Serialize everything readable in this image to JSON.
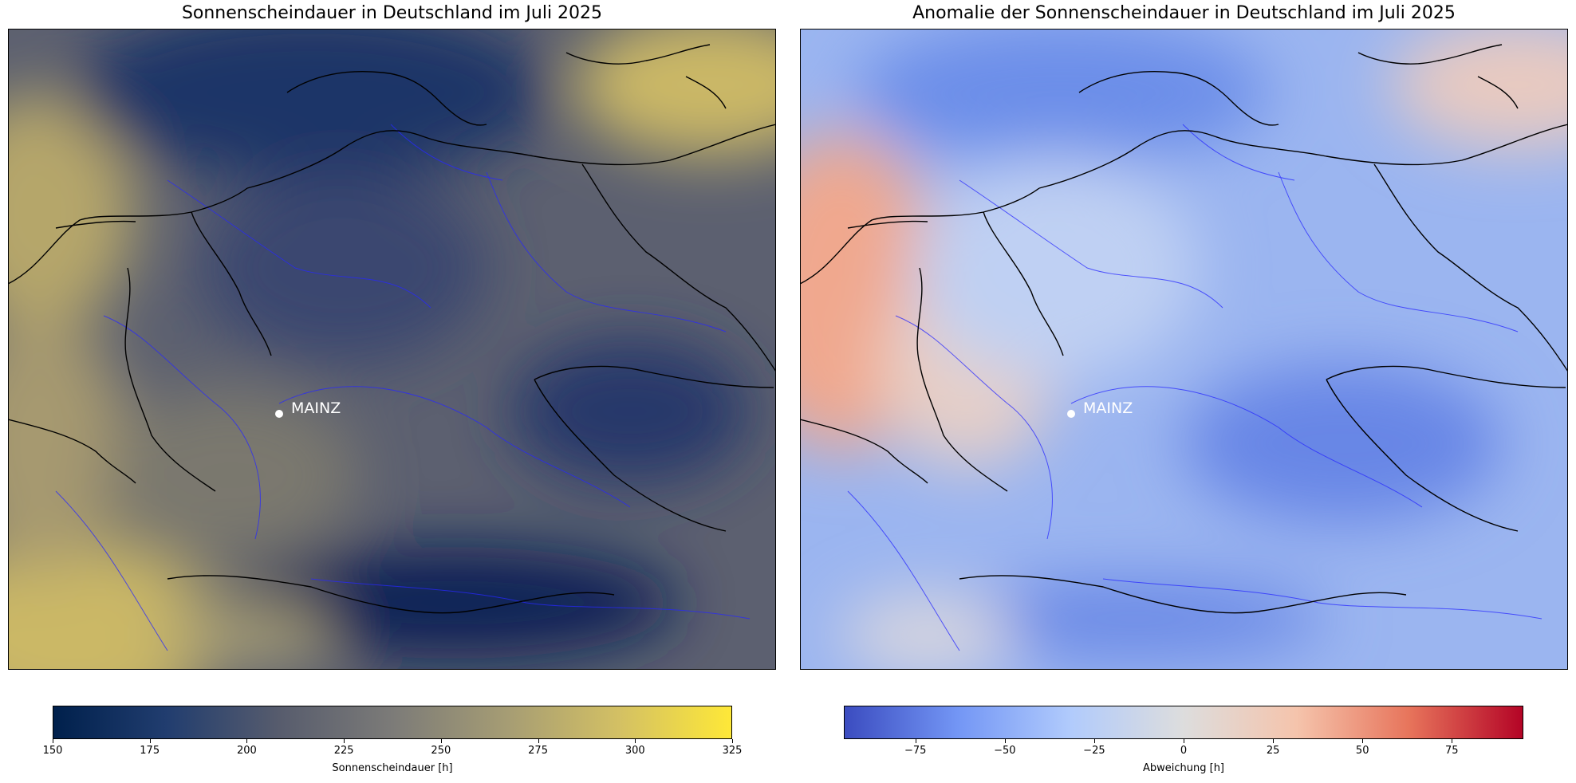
{
  "left_panel": {
    "title": "Sonnenscheindauer in Deutschland im Juli 2025",
    "city": "MAINZ",
    "colorbar": {
      "label": "Sonnenscheindauer [h]",
      "range": [
        150,
        325
      ],
      "ticks": [
        "150",
        "175",
        "200",
        "225",
        "250",
        "275",
        "300",
        "325"
      ],
      "colors": [
        "#00204c",
        "#213d6f",
        "#575c6d",
        "#7c7b78",
        "#a59c74",
        "#d3c064",
        "#fee838"
      ]
    }
  },
  "right_panel": {
    "title": "Anomalie der Sonnenscheindauer in Deutschland im Juli 2025",
    "city": "MAINZ",
    "colorbar": {
      "label": "Abweichung [h]",
      "range": [
        -95,
        95
      ],
      "ticks": [
        "−75",
        "−50",
        "−25",
        "0",
        "25",
        "50",
        "75"
      ],
      "colors": [
        "#3b4cc0",
        "#7396f5",
        "#b1cbfc",
        "#dddddd",
        "#f5c4ac",
        "#e7745b",
        "#b40426"
      ]
    }
  }
}
